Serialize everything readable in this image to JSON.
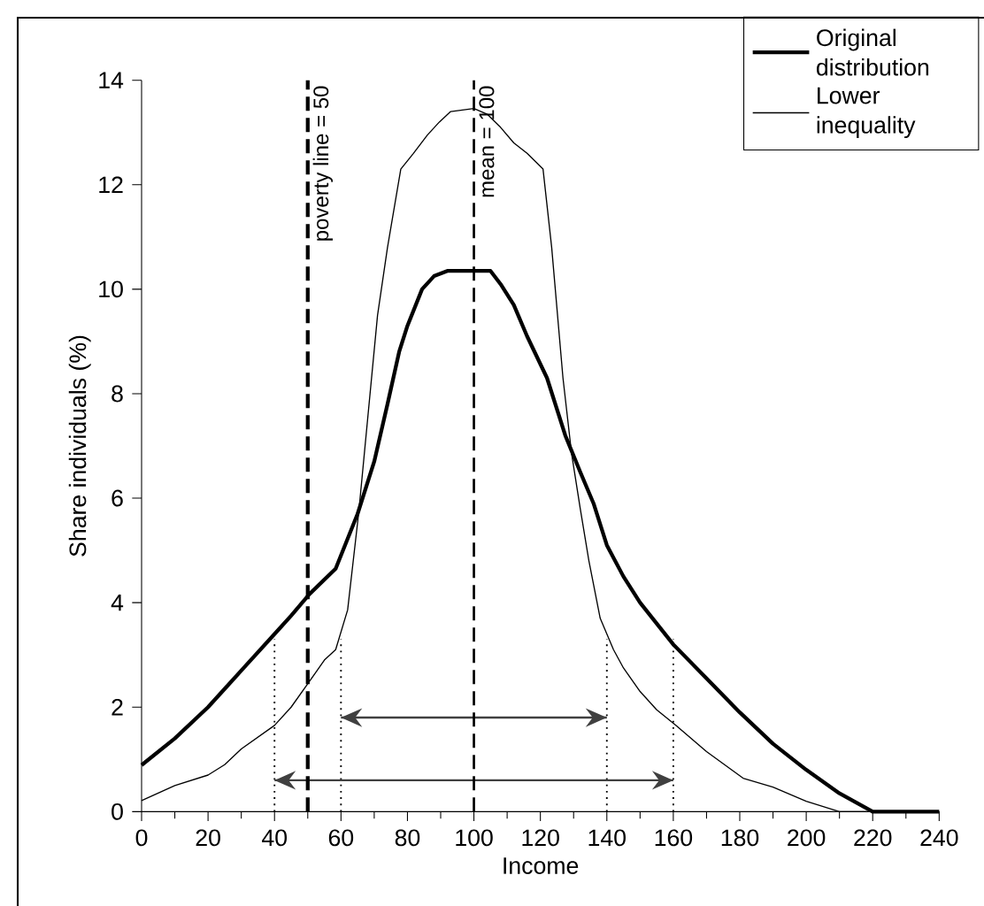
{
  "chart_data": {
    "type": "line",
    "xlabel": "Income",
    "ylabel": "Share individuals (%)",
    "xlim": [
      0,
      240
    ],
    "ylim": [
      0,
      14
    ],
    "xticks": [
      0,
      20,
      40,
      60,
      80,
      100,
      120,
      140,
      160,
      180,
      200,
      220,
      240
    ],
    "yticks": [
      0,
      2,
      4,
      6,
      8,
      10,
      12,
      14
    ],
    "legend": "top right",
    "grid": false,
    "series": [
      {
        "name": "Original distribution",
        "color": "#000000",
        "line_style": "solid",
        "x": [
          0,
          10,
          20,
          30,
          41,
          45,
          50.6,
          58.4,
          65,
          70,
          74,
          77.5,
          80,
          84.4,
          88,
          92,
          96,
          100,
          105,
          108,
          112,
          116,
          122,
          127.5,
          132,
          136,
          140,
          145,
          150,
          155,
          160,
          170,
          180,
          190,
          200,
          210,
          220,
          240
        ],
        "values": [
          0.89,
          1.4,
          2.0,
          2.7,
          3.47,
          3.75,
          4.17,
          4.65,
          5.7,
          6.7,
          7.8,
          8.8,
          9.3,
          10.0,
          10.25,
          10.35,
          10.35,
          10.35,
          10.35,
          10.1,
          9.7,
          9.1,
          8.3,
          7.2,
          6.5,
          5.9,
          5.1,
          4.5,
          4.0,
          3.6,
          3.2,
          2.55,
          1.9,
          1.3,
          0.8,
          0.35,
          0.0,
          0.0
        ]
      },
      {
        "name": "Lower inequality",
        "color": "#000000",
        "line_style": "solid",
        "x": [
          0,
          10,
          20,
          25,
          30,
          40,
          45,
          50.6,
          55,
          58.4,
          62,
          65.3,
          68,
          71,
          74,
          78,
          81.8,
          86,
          89.6,
          93,
          100,
          104,
          108,
          112,
          116,
          120.8,
          123.4,
          126.8,
          129.4,
          132,
          134.6,
          138,
          142,
          145,
          150,
          155,
          160.6,
          170,
          181,
          190,
          200,
          210,
          240
        ],
        "values": [
          0.21,
          0.5,
          0.7,
          0.9,
          1.2,
          1.65,
          2.0,
          2.5,
          2.9,
          3.1,
          3.86,
          5.7,
          7.5,
          9.5,
          10.8,
          12.3,
          12.6,
          12.95,
          13.2,
          13.4,
          13.46,
          13.35,
          13.1,
          12.8,
          12.6,
          12.3,
          10.8,
          8.3,
          6.85,
          5.8,
          4.8,
          3.7,
          3.1,
          2.75,
          2.3,
          1.95,
          1.66,
          1.15,
          0.64,
          0.47,
          0.2,
          0.0,
          0.0
        ]
      },
      {
        "color": "#000000",
        "line_style": "dotted",
        "x": [
          40,
          40
        ],
        "values": [
          0,
          3.3
        ]
      },
      {
        "color": "#000000",
        "line_style": "dotted",
        "x": [
          60,
          60
        ],
        "values": [
          0,
          3.3
        ]
      },
      {
        "color": "#000000",
        "line_style": "dotted",
        "x": [
          140,
          140
        ],
        "values": [
          0,
          3.3
        ]
      },
      {
        "color": "#000000",
        "line_style": "dotted",
        "x": [
          160,
          160
        ],
        "values": [
          0,
          3.3
        ]
      },
      {
        "color": "#404040",
        "line_style": "solid",
        "x": [
          60,
          140
        ],
        "values": [
          1.8,
          1.8
        ]
      },
      {
        "color": "#404040",
        "line_style": "solid",
        "x": [
          40,
          160
        ],
        "values": [
          0.6,
          0.6
        ]
      }
    ],
    "ref_lines": [
      {
        "axis": "x",
        "value": 50,
        "label": "poverty line = 50",
        "line_style": "dashed",
        "color": "#000000"
      },
      {
        "axis": "x",
        "value": 100,
        "label": "mean = 100",
        "line_style": "dashed",
        "color": "#000000"
      }
    ]
  }
}
